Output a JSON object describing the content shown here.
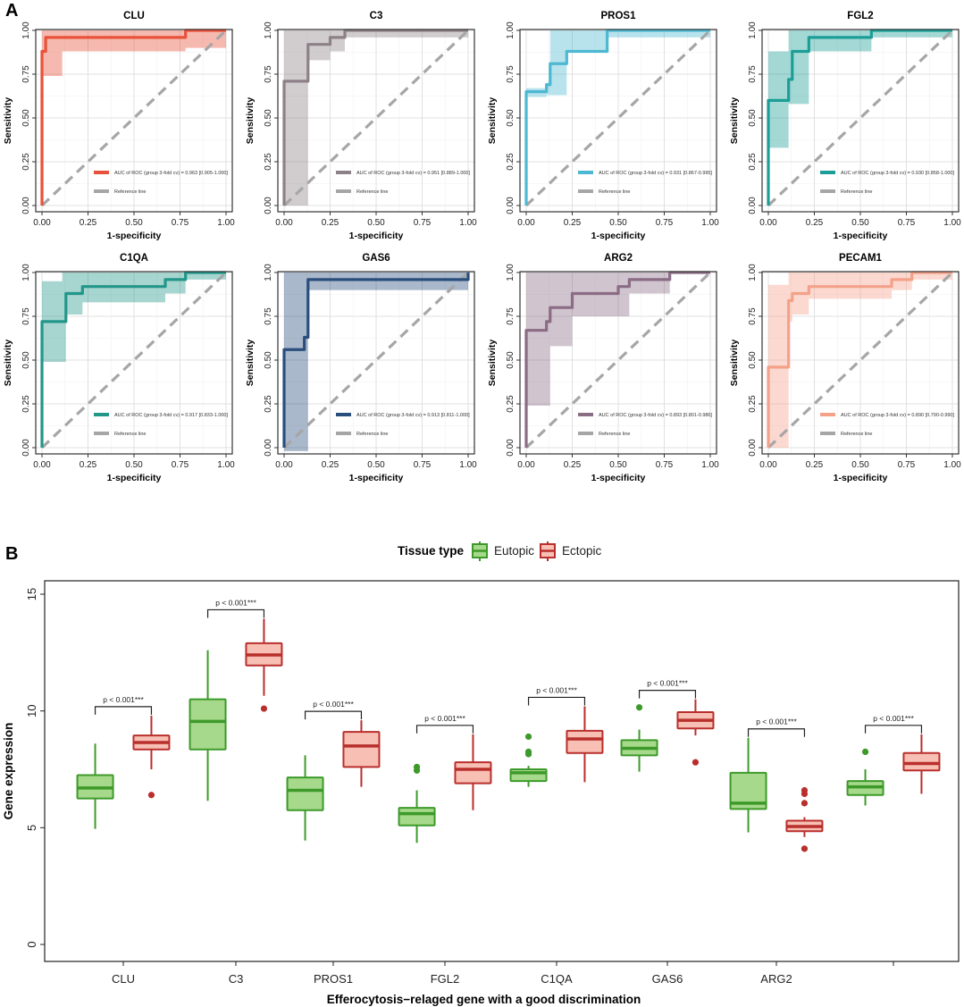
{
  "panel_labels": [
    "A",
    "B"
  ],
  "roc_common": {
    "xlabel": "1-specificity",
    "ylabel": "Sensitivity",
    "ticks": [
      "0.00",
      "0.25",
      "0.50",
      "0.75",
      "1.00"
    ],
    "reference_label": "Reference line",
    "reference_color": "#a6a6a6"
  },
  "chart_data": [
    {
      "type": "line",
      "title": "CLU",
      "color": "#e8513a",
      "xlabel": "1-specificity",
      "ylabel": "Sensitivity",
      "xlim": [
        0,
        1
      ],
      "ylim": [
        0,
        1
      ],
      "auc_label": "AUC of ROC (group 3-fold cv) = 0.963 [0.905-1.000]",
      "curve": [
        [
          0,
          0
        ],
        [
          0,
          0.88
        ],
        [
          0.02,
          0.88
        ],
        [
          0.02,
          0.96
        ],
        [
          0.78,
          0.96
        ],
        [
          0.78,
          1
        ],
        [
          1,
          1
        ]
      ],
      "ci_upper": [
        [
          0,
          0.96
        ],
        [
          0,
          1
        ],
        [
          0.78,
          1
        ],
        [
          1,
          1
        ]
      ],
      "ci_lower": [
        [
          0,
          0
        ],
        [
          0,
          0.74
        ],
        [
          0.11,
          0.74
        ],
        [
          0.11,
          0.88
        ],
        [
          0.78,
          0.88
        ],
        [
          0.78,
          0.9
        ],
        [
          1,
          0.9
        ]
      ]
    },
    {
      "type": "line",
      "title": "C3",
      "color": "#8c8186",
      "xlabel": "1-specificity",
      "ylabel": "Sensitivity",
      "xlim": [
        0,
        1
      ],
      "ylim": [
        0,
        1
      ],
      "auc_label": "AUC of ROC (group 3-fold cv) = 0.951 [0.889-1.000]",
      "curve": [
        [
          0,
          0
        ],
        [
          0,
          0.71
        ],
        [
          0.13,
          0.71
        ],
        [
          0.13,
          0.92
        ],
        [
          0.25,
          0.92
        ],
        [
          0.25,
          0.96
        ],
        [
          0.33,
          0.96
        ],
        [
          0.33,
          1
        ],
        [
          1,
          1
        ]
      ],
      "ci_upper": [
        [
          0,
          0.2
        ],
        [
          0,
          1
        ],
        [
          1,
          1
        ]
      ],
      "ci_lower": [
        [
          0,
          0
        ],
        [
          0.13,
          0
        ],
        [
          0.13,
          0.25
        ],
        [
          0.13,
          0.83
        ],
        [
          0.25,
          0.83
        ],
        [
          0.25,
          0.88
        ],
        [
          0.33,
          0.88
        ],
        [
          0.33,
          0.96
        ],
        [
          1,
          0.96
        ]
      ]
    },
    {
      "type": "line",
      "title": "PROS1",
      "color": "#4db8d1",
      "xlabel": "1-specificity",
      "ylabel": "Sensitivity",
      "xlim": [
        0,
        1
      ],
      "ylim": [
        0,
        1
      ],
      "auc_label": "AUC of ROC (group 3-fold cv) = 0.931 [0.867-0.995]",
      "curve": [
        [
          0,
          0
        ],
        [
          0,
          0.65
        ],
        [
          0.11,
          0.65
        ],
        [
          0.11,
          0.69
        ],
        [
          0.13,
          0.69
        ],
        [
          0.13,
          0.81
        ],
        [
          0.22,
          0.81
        ],
        [
          0.22,
          0.88
        ],
        [
          0.44,
          0.88
        ],
        [
          0.44,
          0.96
        ],
        [
          0.44,
          1
        ],
        [
          1,
          1
        ]
      ],
      "ci_upper": [
        [
          0,
          0.62
        ],
        [
          0,
          0.67
        ],
        [
          0.11,
          0.67
        ],
        [
          0.11,
          0.7
        ],
        [
          0.13,
          0.7
        ],
        [
          0.13,
          1
        ],
        [
          1,
          1
        ]
      ],
      "ci_lower": [
        [
          0,
          0.62
        ],
        [
          0.11,
          0.62
        ],
        [
          0.11,
          0.63
        ],
        [
          0.22,
          0.63
        ],
        [
          0.22,
          0.77
        ],
        [
          0.22,
          0.88
        ],
        [
          0.44,
          0.88
        ],
        [
          0.44,
          0.96
        ],
        [
          1,
          0.96
        ]
      ]
    },
    {
      "type": "line",
      "title": "FGL2",
      "color": "#1b9e96",
      "xlabel": "1-specificity",
      "ylabel": "Sensitivity",
      "xlim": [
        0,
        1
      ],
      "ylim": [
        0,
        1
      ],
      "auc_label": "AUC of ROC (group 3-fold cv) = 0.930 [0.858-1.000]",
      "curve": [
        [
          0,
          0
        ],
        [
          0,
          0.6
        ],
        [
          0.11,
          0.6
        ],
        [
          0.11,
          0.72
        ],
        [
          0.13,
          0.72
        ],
        [
          0.13,
          0.88
        ],
        [
          0.22,
          0.88
        ],
        [
          0.22,
          0.96
        ],
        [
          0.56,
          0.96
        ],
        [
          0.56,
          1
        ],
        [
          1,
          1
        ]
      ],
      "ci_upper": [
        [
          0,
          0.88
        ],
        [
          0.11,
          0.88
        ],
        [
          0.11,
          1
        ],
        [
          1,
          1
        ]
      ],
      "ci_lower": [
        [
          0,
          0.33
        ],
        [
          0.11,
          0.33
        ],
        [
          0.11,
          0.58
        ],
        [
          0.22,
          0.58
        ],
        [
          0.22,
          0.76
        ],
        [
          0.22,
          0.88
        ],
        [
          0.56,
          0.88
        ],
        [
          0.56,
          0.96
        ],
        [
          1,
          0.96
        ]
      ]
    },
    {
      "type": "line",
      "title": "C1QA",
      "color": "#23968a",
      "xlabel": "1-specificity",
      "ylabel": "Sensitivity",
      "xlim": [
        0,
        1
      ],
      "ylim": [
        0,
        1
      ],
      "auc_label": "AUC of ROC (group 3-fold cv) = 0.917 [0.833-1.000]",
      "curve": [
        [
          0,
          0
        ],
        [
          0,
          0.72
        ],
        [
          0.13,
          0.72
        ],
        [
          0.13,
          0.88
        ],
        [
          0.22,
          0.88
        ],
        [
          0.22,
          0.92
        ],
        [
          0.67,
          0.92
        ],
        [
          0.67,
          0.96
        ],
        [
          0.78,
          0.96
        ],
        [
          0.78,
          1
        ],
        [
          1,
          1
        ]
      ],
      "ci_upper": [
        [
          0,
          0.95
        ],
        [
          0.11,
          0.95
        ],
        [
          0.11,
          1
        ],
        [
          1,
          1
        ]
      ],
      "ci_lower": [
        [
          0,
          0.49
        ],
        [
          0.13,
          0.49
        ],
        [
          0.13,
          0.76
        ],
        [
          0.22,
          0.76
        ],
        [
          0.22,
          0.83
        ],
        [
          0.67,
          0.83
        ],
        [
          0.67,
          0.88
        ],
        [
          0.78,
          0.88
        ],
        [
          0.78,
          0.96
        ],
        [
          1,
          0.96
        ]
      ]
    },
    {
      "type": "line",
      "title": "GAS6",
      "color": "#2a4e7c",
      "xlabel": "1-specificity",
      "ylabel": "Sensitivity",
      "xlim": [
        0,
        1
      ],
      "ylim": [
        0,
        1
      ],
      "auc_label": "AUC of ROC (group 3-fold cv) = 0.913 [0.811-1.000]",
      "curve": [
        [
          0,
          0
        ],
        [
          0,
          0.56
        ],
        [
          0.11,
          0.56
        ],
        [
          0.11,
          0.63
        ],
        [
          0.13,
          0.63
        ],
        [
          0.13,
          0.96
        ],
        [
          1,
          0.96
        ],
        [
          1,
          1
        ]
      ],
      "ci_upper": [
        [
          0,
          1
        ],
        [
          1,
          1
        ]
      ],
      "ci_lower": [
        [
          0,
          -0.02
        ],
        [
          0.13,
          -0.02
        ],
        [
          0.13,
          0.9
        ],
        [
          1,
          0.9
        ]
      ]
    },
    {
      "type": "line",
      "title": "ARG2",
      "color": "#8a6c84",
      "xlabel": "1-specificity",
      "ylabel": "Sensitivity",
      "xlim": [
        0,
        1
      ],
      "ylim": [
        0,
        1
      ],
      "auc_label": "AUC of ROC (group 3-fold cv) = 0.893 [0.801-0.986]",
      "curve": [
        [
          0,
          0
        ],
        [
          0,
          0.67
        ],
        [
          0.11,
          0.67
        ],
        [
          0.11,
          0.72
        ],
        [
          0.13,
          0.72
        ],
        [
          0.13,
          0.8
        ],
        [
          0.25,
          0.8
        ],
        [
          0.25,
          0.88
        ],
        [
          0.5,
          0.88
        ],
        [
          0.5,
          0.92
        ],
        [
          0.56,
          0.92
        ],
        [
          0.56,
          0.96
        ],
        [
          0.78,
          0.96
        ],
        [
          0.78,
          1
        ],
        [
          1,
          1
        ]
      ],
      "ci_upper": [
        [
          0,
          1
        ],
        [
          1,
          1
        ]
      ],
      "ci_lower": [
        [
          0,
          0.24
        ],
        [
          0.13,
          0.24
        ],
        [
          0.13,
          0.58
        ],
        [
          0.25,
          0.58
        ],
        [
          0.25,
          0.75
        ],
        [
          0.56,
          0.75
        ],
        [
          0.56,
          0.88
        ],
        [
          0.78,
          0.88
        ],
        [
          0.78,
          1
        ],
        [
          1,
          1
        ]
      ]
    },
    {
      "type": "line",
      "title": "PECAM1",
      "color": "#f4a189",
      "xlabel": "1-specificity",
      "ylabel": "Sensitivity",
      "xlim": [
        0,
        1
      ],
      "ylim": [
        0,
        1
      ],
      "auc_label": "AUC of ROC (group 3-fold cv) = 0.890 [0.790-0.990]",
      "curve": [
        [
          0,
          0
        ],
        [
          0,
          0.46
        ],
        [
          0.11,
          0.46
        ],
        [
          0.11,
          0.84
        ],
        [
          0.13,
          0.84
        ],
        [
          0.13,
          0.88
        ],
        [
          0.22,
          0.88
        ],
        [
          0.22,
          0.92
        ],
        [
          0.67,
          0.92
        ],
        [
          0.67,
          0.96
        ],
        [
          0.78,
          0.96
        ],
        [
          0.78,
          1
        ],
        [
          1,
          1
        ]
      ],
      "ci_upper": [
        [
          0,
          0.93
        ],
        [
          0.11,
          0.93
        ],
        [
          0.11,
          1
        ],
        [
          1,
          1
        ]
      ],
      "ci_lower": [
        [
          0,
          0
        ],
        [
          0.11,
          0
        ],
        [
          0.11,
          0.72
        ],
        [
          0.13,
          0.72
        ],
        [
          0.13,
          0.76
        ],
        [
          0.22,
          0.76
        ],
        [
          0.22,
          0.85
        ],
        [
          0.67,
          0.85
        ],
        [
          0.67,
          0.9
        ],
        [
          0.78,
          0.9
        ],
        [
          0.78,
          0.96
        ],
        [
          1,
          0.96
        ]
      ]
    },
    {
      "type": "box",
      "legend_title": "Tissue type",
      "groups": [
        {
          "name": "Eutopic",
          "stroke": "#3d9a2a",
          "fill": "#a6d98b"
        },
        {
          "name": "Ectopic",
          "stroke": "#b92f2c",
          "fill": "#f8c0b5"
        }
      ],
      "categories": [
        "CLU",
        "C3",
        "PROS1",
        "FGL2",
        "C1QA",
        "GAS6",
        "ARG2",
        ""
      ],
      "xlabel": "Efferocytosis−relaged gene with a good discrimination",
      "ylabel": "Gene expression",
      "ylim": [
        0,
        15
      ],
      "yticks": [
        0,
        5,
        10,
        15
      ],
      "p_label": "p < 0.001***",
      "series": [
        {
          "name": "Eutopic",
          "boxes": [
            {
              "min": 4.95,
              "q1": 6.25,
              "median": 6.7,
              "q3": 7.25,
              "max": 8.6,
              "outliers": []
            },
            {
              "min": 6.15,
              "q1": 8.35,
              "median": 9.55,
              "q3": 10.5,
              "max": 12.6,
              "outliers": []
            },
            {
              "min": 4.45,
              "q1": 5.75,
              "median": 6.6,
              "q3": 7.15,
              "max": 8.1,
              "outliers": []
            },
            {
              "min": 4.35,
              "q1": 5.1,
              "median": 5.6,
              "q3": 5.85,
              "max": 6.6,
              "outliers": [
                7.45,
                7.6
              ]
            },
            {
              "min": 6.75,
              "q1": 7.0,
              "median": 7.35,
              "q3": 7.5,
              "max": 7.65,
              "outliers": [
                8.15,
                8.25,
                8.9
              ]
            },
            {
              "min": 7.4,
              "q1": 8.1,
              "median": 8.4,
              "q3": 8.75,
              "max": 9.2,
              "outliers": [
                10.15
              ]
            },
            {
              "min": 4.8,
              "q1": 5.8,
              "median": 6.05,
              "q3": 7.35,
              "max": 8.85,
              "outliers": []
            },
            {
              "min": 5.95,
              "q1": 6.4,
              "median": 6.75,
              "q3": 7.0,
              "max": 7.5,
              "outliers": [
                8.25
              ]
            }
          ]
        },
        {
          "name": "Ectopic",
          "boxes": [
            {
              "min": 7.5,
              "q1": 8.35,
              "median": 8.65,
              "q3": 8.95,
              "max": 9.8,
              "outliers": [
                6.4
              ]
            },
            {
              "min": 10.65,
              "q1": 11.95,
              "median": 12.4,
              "q3": 12.9,
              "max": 13.95,
              "outliers": [
                10.1
              ]
            },
            {
              "min": 6.75,
              "q1": 7.6,
              "median": 8.5,
              "q3": 9.1,
              "max": 9.6,
              "outliers": []
            },
            {
              "min": 5.75,
              "q1": 6.9,
              "median": 7.5,
              "q3": 7.8,
              "max": 9.0,
              "outliers": []
            },
            {
              "min": 6.95,
              "q1": 8.2,
              "median": 8.8,
              "q3": 9.15,
              "max": 10.2,
              "outliers": []
            },
            {
              "min": 8.95,
              "q1": 9.25,
              "median": 9.6,
              "q3": 9.95,
              "max": 10.5,
              "outliers": [
                7.8
              ]
            },
            {
              "min": 4.6,
              "q1": 4.85,
              "median": 5.05,
              "q3": 5.3,
              "max": 5.45,
              "outliers": [
                4.1,
                6.05,
                6.45,
                6.6
              ]
            },
            {
              "min": 6.45,
              "q1": 7.45,
              "median": 7.75,
              "q3": 8.2,
              "max": 9.0,
              "outliers": []
            }
          ]
        }
      ]
    }
  ]
}
